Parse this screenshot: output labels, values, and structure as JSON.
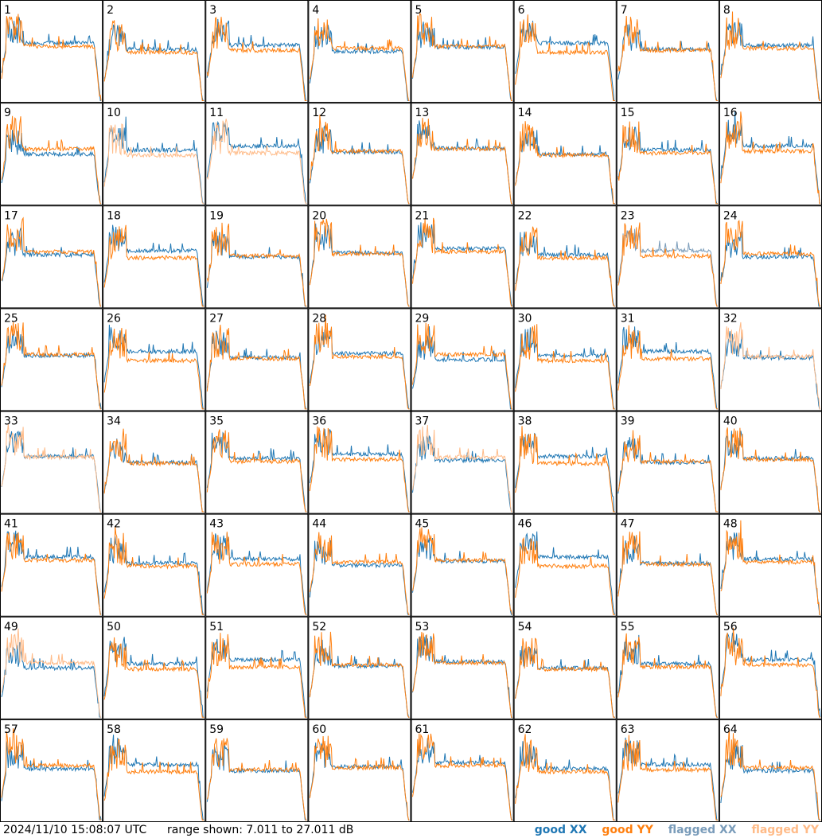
{
  "chart_data": {
    "type": "line",
    "panels": [
      "1",
      "2",
      "3",
      "4",
      "5",
      "6",
      "7",
      "8",
      "9",
      "10",
      "11",
      "12",
      "13",
      "14",
      "15",
      "16",
      "17",
      "18",
      "19",
      "20",
      "21",
      "22",
      "23",
      "24",
      "25",
      "26",
      "27",
      "28",
      "29",
      "30",
      "31",
      "32",
      "33",
      "34",
      "35",
      "36",
      "37",
      "38",
      "39",
      "40",
      "41",
      "42",
      "43",
      "44",
      "45",
      "46",
      "47",
      "48",
      "49",
      "50",
      "51",
      "52",
      "53",
      "54",
      "55",
      "56",
      "57",
      "58",
      "59",
      "60",
      "61",
      "62",
      "63",
      "64"
    ],
    "ylim": [
      7.011,
      27.011
    ],
    "series": [
      {
        "name": "good XX",
        "color": "#1f77b4"
      },
      {
        "name": "good YY",
        "color": "#ff7f0e"
      },
      {
        "name": "flagged XX",
        "color": "#7a9cba"
      },
      {
        "name": "flagged YY",
        "color": "#ffbb88"
      }
    ],
    "flagged_xx_panels": [
      "23"
    ],
    "flagged_yy_panels": [
      "10",
      "11",
      "32",
      "33",
      "37",
      "49"
    ],
    "notes_range": "range shown: 7.011 to 27.011 dB"
  },
  "footer": {
    "timestamp": "2024/11/10 15:08:07 UTC",
    "range_text": "range shown: 7.011 to 27.011 dB"
  },
  "legend": {
    "good_xx": "good XX",
    "good_yy": "good YY",
    "flagged_xx": "flagged XX",
    "flagged_yy": "flagged YY"
  }
}
